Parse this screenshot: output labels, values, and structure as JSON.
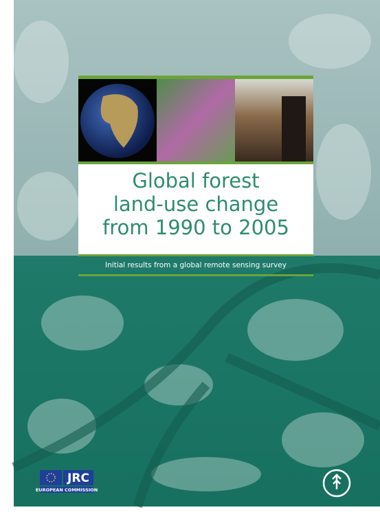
{
  "cover": {
    "title_lines": [
      "Global forest",
      "land-use change",
      "from 1990 to 2005"
    ],
    "subtitle": "Initial results from a global remote sensing survey",
    "publisher_left": {
      "name": "JRC",
      "org": "EUROPEAN COMMISSION"
    }
  }
}
